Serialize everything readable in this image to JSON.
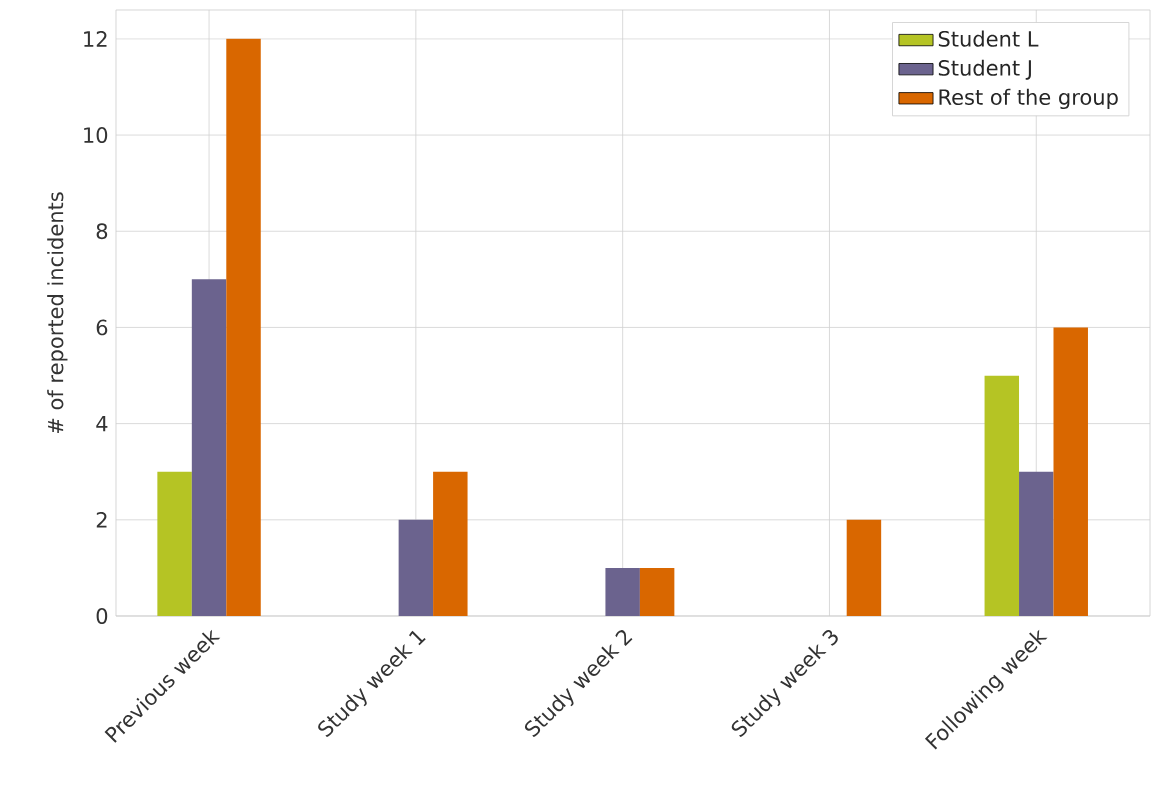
{
  "chart_data": {
    "type": "bar",
    "ylabel": "# of reported incidents",
    "categories": [
      "Previous week",
      "Study week 1",
      "Study week 2",
      "Study week 3",
      "Following week"
    ],
    "series": [
      {
        "name": "Student L",
        "color": "#b5c424",
        "values": [
          3,
          0,
          0,
          0,
          5
        ]
      },
      {
        "name": "Student J",
        "color": "#6b638e",
        "values": [
          7,
          2,
          1,
          0,
          3
        ]
      },
      {
        "name": "Rest of the group",
        "color": "#d96700",
        "values": [
          12,
          3,
          1,
          2,
          6
        ]
      }
    ],
    "ylim": [
      0,
      12.6
    ],
    "yticks": [
      0,
      2,
      4,
      6,
      8,
      10,
      12
    ],
    "grid": true,
    "legend": "top right"
  }
}
